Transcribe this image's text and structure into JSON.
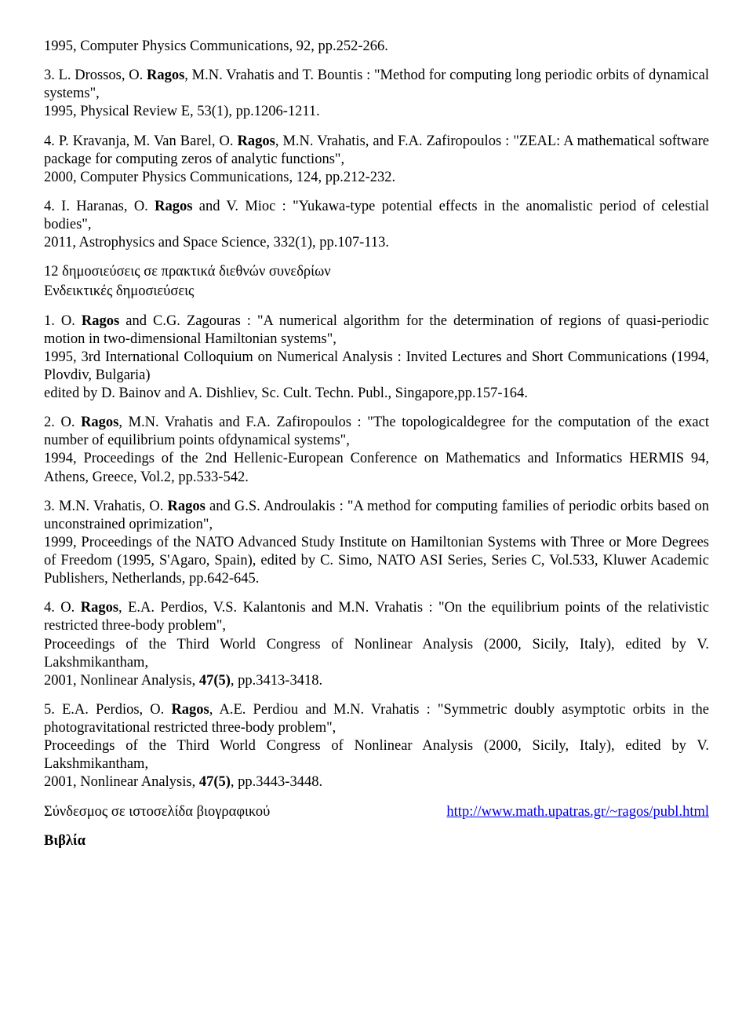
{
  "para": {
    "topline": "1995, Computer Physics Communications, 92, pp.252-266.",
    "j3_a": "3. L. Drossos, O. ",
    "ragos": "Ragos",
    "j3_b": ", M.N. Vrahatis and T. Bountis : \"Method for computing long periodic orbits of dynamical systems\",",
    "j3_c": "1995, Physical Review E, 53(1), pp.1206-1211.",
    "j4_a": "4. P. Kravanja, M. Van Barel, O. ",
    "j4_b": ", M.N. Vrahatis, and F.A. Zafiropoulos : \"ZEAL: A mathematical software package for computing zeros of analytic functions\",",
    "j4_c": "2000, Computer Physics Communications, 124, pp.212-232.",
    "j5_a": "4. I. Haranas, O. ",
    "j5_b": " and V. Mioc : \"Yukawa-type potential effects in the anomalistic period of celestial bodies\",",
    "j5_c": "2011, Astrophysics and Space Science, 332(1), pp.107-113.",
    "conf_heading": "12 δημοσιεύσεις σε πρακτικά διεθνών συνεδρίων",
    "conf_sub": "Ενδεικτικές δημοσιεύσεις",
    "c1_a": "1. O. ",
    "c1_b": " and C.G. Zagouras : \"A numerical algorithm for the determination of regions of quasi-periodic motion in two-dimensional Hamiltonian systems\",",
    "c1_c": "1995, 3rd International Colloquium on Numerical Analysis : Invited Lectures and Short Communications (1994, Plovdiv, Bulgaria)",
    "c1_d": "edited by D. Bainov and A. Dishliev, Sc. Cult. Techn. Publ., Singapore,pp.157-164.",
    "c2_a": "2. O. ",
    "c2_b": ", M.N. Vrahatis and F.A. Zafiropoulos : \"The topologicaldegree for the computation of the exact number of equilibrium points ofdynamical systems\",",
    "c2_c": "1994, Proceedings of the 2nd Hellenic-European Conference on Mathematics and Informatics HERMIS 94, Athens, Greece, Vol.2, pp.533-542.",
    "c3_a": "3. M.N. Vrahatis, O. ",
    "c3_b": " and G.S. Androulakis : \"A method for computing families of periodic orbits based on unconstrained oprimization\",",
    "c3_c": "1999, Proceedings of the NATO Advanced Study Institute on Hamiltonian Systems with Three or More Degrees of Freedom (1995, S'Agaro, Spain), edited by C. Simo, NATO ASI Series, Series C, Vol.533, Kluwer Academic Publishers, Netherlands, pp.642-645.",
    "c4_a": "4. O. ",
    "c4_b": ", E.A. Perdios, V.S. Kalantonis and M.N. Vrahatis : \"On the equilibrium points of the relativistic restricted three-body problem\",",
    "c4_c": "Proceedings of the Third World Congress of Nonlinear Analysis (2000, Sicily, Italy), edited by V. Lakshmikantham,",
    "c4_d": "2001, Nonlinear Analysis, ",
    "c4_vol": "47(5)",
    "c4_e": ", pp.3413-3418.",
    "c5_a": "5. E.A. Perdios, O. ",
    "c5_b": ", A.E. Perdiou and M.N. Vrahatis : \"Symmetric doubly asymptotic orbits in the photogravitational restricted three-body problem\",",
    "c5_c": "Proceedings of the Third World Congress of Nonlinear Analysis (2000, Sicily, Italy), edited by V. Lakshmikantham,",
    "c5_d": "2001, Nonlinear Analysis, ",
    "c5_vol": "47(5)",
    "c5_e": ", pp.3443-3448.",
    "link_label": "Σύνδεσμος σε ιστοσελίδα βιογραφικού",
    "link_url": "http://www.math.upatras.gr/~ragos/publ.html",
    "books": "Βιβλία"
  }
}
